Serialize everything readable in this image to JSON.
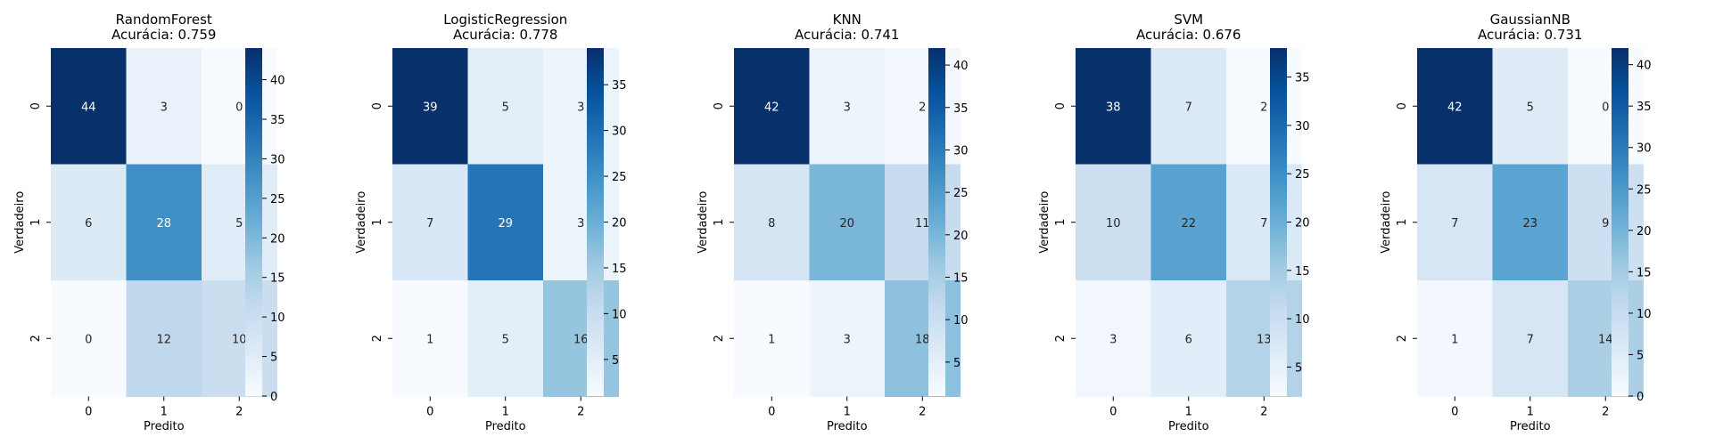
{
  "figure": {
    "type": "heatmap-grid"
  },
  "chart_data": [
    {
      "type": "heatmap",
      "title": "RandomForest",
      "subtitle": "Acurácia: 0.759",
      "xlabel": "Predito",
      "ylabel": "Verdadeiro",
      "x_categories": [
        "0",
        "1",
        "2"
      ],
      "y_categories": [
        "0",
        "1",
        "2"
      ],
      "matrix": [
        [
          44,
          3,
          0
        ],
        [
          6,
          28,
          5
        ],
        [
          0,
          12,
          10
        ]
      ],
      "colormap": "Blues",
      "vmin": 0,
      "vmax": 44,
      "colorbar_ticks": [
        0,
        5,
        10,
        15,
        20,
        25,
        30,
        35,
        40
      ]
    },
    {
      "type": "heatmap",
      "title": "LogisticRegression",
      "subtitle": "Acurácia: 0.778",
      "xlabel": "Predito",
      "ylabel": "Verdadeiro",
      "x_categories": [
        "0",
        "1",
        "2"
      ],
      "y_categories": [
        "0",
        "1",
        "2"
      ],
      "matrix": [
        [
          39,
          5,
          3
        ],
        [
          7,
          29,
          3
        ],
        [
          1,
          5,
          16
        ]
      ],
      "colormap": "Blues",
      "vmin": 1,
      "vmax": 39,
      "colorbar_ticks": [
        5,
        10,
        15,
        20,
        25,
        30,
        35
      ]
    },
    {
      "type": "heatmap",
      "title": "KNN",
      "subtitle": "Acurácia: 0.741",
      "xlabel": "Predito",
      "ylabel": "Verdadeiro",
      "x_categories": [
        "0",
        "1",
        "2"
      ],
      "y_categories": [
        "0",
        "1",
        "2"
      ],
      "matrix": [
        [
          42,
          3,
          2
        ],
        [
          8,
          20,
          11
        ],
        [
          1,
          3,
          18
        ]
      ],
      "colormap": "Blues",
      "vmin": 1,
      "vmax": 42,
      "colorbar_ticks": [
        5,
        10,
        15,
        20,
        25,
        30,
        35,
        40
      ]
    },
    {
      "type": "heatmap",
      "title": "SVM",
      "subtitle": "Acurácia: 0.676",
      "xlabel": "Predito",
      "ylabel": "Verdadeiro",
      "x_categories": [
        "0",
        "1",
        "2"
      ],
      "y_categories": [
        "0",
        "1",
        "2"
      ],
      "matrix": [
        [
          38,
          7,
          2
        ],
        [
          10,
          22,
          7
        ],
        [
          3,
          6,
          13
        ]
      ],
      "colormap": "Blues",
      "vmin": 2,
      "vmax": 38,
      "colorbar_ticks": [
        5,
        10,
        15,
        20,
        25,
        30,
        35
      ]
    },
    {
      "type": "heatmap",
      "title": "GaussianNB",
      "subtitle": "Acurácia: 0.731",
      "xlabel": "Predito",
      "ylabel": "Verdadeiro",
      "x_categories": [
        "0",
        "1",
        "2"
      ],
      "y_categories": [
        "0",
        "1",
        "2"
      ],
      "matrix": [
        [
          42,
          5,
          0
        ],
        [
          7,
          23,
          9
        ],
        [
          1,
          7,
          14
        ]
      ],
      "colormap": "Blues",
      "vmin": 0,
      "vmax": 42,
      "colorbar_ticks": [
        0,
        5,
        10,
        15,
        20,
        25,
        30,
        35,
        40
      ]
    }
  ]
}
